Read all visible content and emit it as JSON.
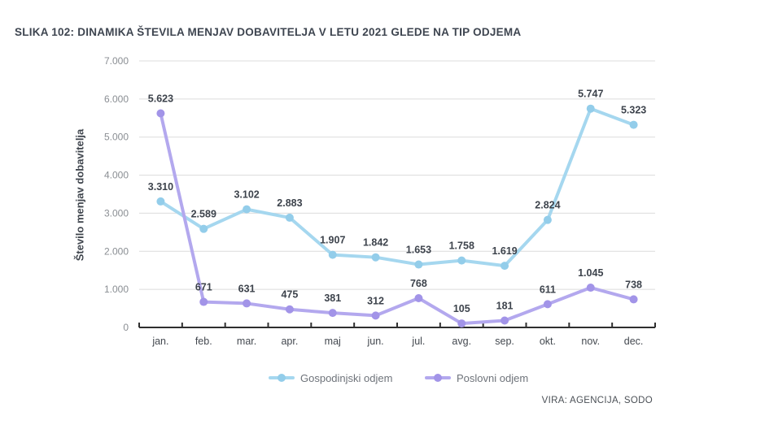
{
  "figure": {
    "title": "SLIKA 102: DINAMIKA ŠTEVILA MENJAV DOBAVITELJA V LETU 2021 GLEDE NA TIP ODJEMA",
    "source": "VIRA: AGENCIJA, SODO"
  },
  "chart_data": {
    "type": "line",
    "title": "SLIKA 102: DINAMIKA ŠTEVILA MENJAV DOBAVITELJA V LETU 2021 GLEDE NA TIP ODJEMA",
    "xlabel": "",
    "ylabel": "Število menjav dobavitelja",
    "ylim": [
      0,
      7000
    ],
    "yticks": [
      0,
      1000,
      2000,
      3000,
      4000,
      5000,
      6000,
      7000
    ],
    "ytick_labels": [
      "0",
      "1.000",
      "2.000",
      "3.000",
      "4.000",
      "5.000",
      "6.000",
      "7.000"
    ],
    "categories": [
      "jan.",
      "feb.",
      "mar.",
      "apr.",
      "maj",
      "jun.",
      "jul.",
      "avg.",
      "sep.",
      "okt.",
      "nov.",
      "dec."
    ],
    "grid": "horizontal",
    "legend_position": "bottom",
    "series": [
      {
        "name": "Gospodinjski odjem",
        "color": "#a5d7ef",
        "marker_color": "#93cdea",
        "values": [
          3310,
          2589,
          3102,
          2883,
          1907,
          1842,
          1653,
          1758,
          1619,
          2824,
          5747,
          5323
        ],
        "labels": [
          "3.310",
          "2.589",
          "3.102",
          "2.883",
          "1.907",
          "1.842",
          "1.653",
          "1.758",
          "1.619",
          "2.824",
          "5.747",
          "5.323"
        ]
      },
      {
        "name": "Poslovni odjem",
        "color": "#b3a8ee",
        "marker_color": "#a294e8",
        "values": [
          5623,
          671,
          631,
          475,
          381,
          312,
          768,
          105,
          181,
          611,
          1045,
          738
        ],
        "labels": [
          "5.623",
          "671",
          "631",
          "475",
          "381",
          "312",
          "768",
          "105",
          "181",
          "611",
          "1.045",
          "738"
        ]
      }
    ],
    "colors": {
      "gridline": "#dcdcdc",
      "axis": "#2f2f2f",
      "data_label": "#3d434c"
    }
  }
}
